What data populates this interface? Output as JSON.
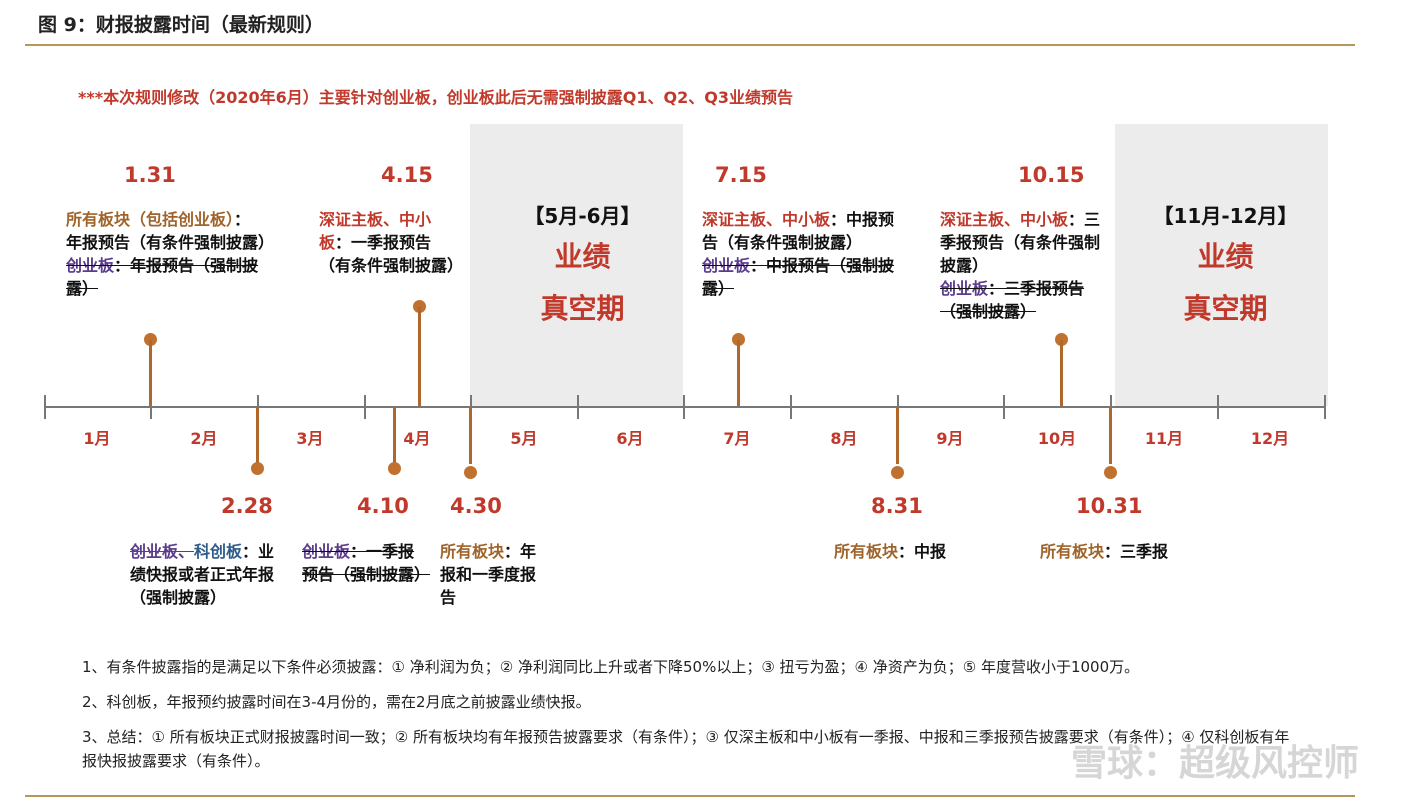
{
  "figure_title": "图 9：财报披露时间（最新规则）",
  "notice": "***本次规则修改（2020年6月）主要针对创业板，创业板此后无需强制披露Q1、Q2、Q3业绩预告",
  "months": [
    "1月",
    "2月",
    "3月",
    "4月",
    "5月",
    "6月",
    "7月",
    "8月",
    "9月",
    "10月",
    "11月",
    "12月"
  ],
  "vacuum_periods": [
    {
      "range": "【5月-6月】",
      "line1": "业绩",
      "line2": "真空期"
    },
    {
      "range": "【11月-12月】",
      "line1": "业绩",
      "line2": "真空期"
    }
  ],
  "events_above": [
    {
      "date": "1.31",
      "p1a": "所有板块（包括创业板）",
      "p1b": "：年报预告（有条件强制披露）",
      "p2a": "创业板",
      "p2b": "：年报预告（强制披露）"
    },
    {
      "date": "4.15",
      "p1a": "深证主板、中小板",
      "p1b": "：一季报预告（有条件强制披露）"
    },
    {
      "date": "7.15",
      "p1a": "深证主板、中小板",
      "p1b": "：中报预告（有条件强制披露）",
      "p2a": "创业板",
      "p2b": "：中报预告（强制披露）"
    },
    {
      "date": "10.15",
      "p1a": "深证主板、中小板",
      "p1b": "：三季报预告（有条件强制披露）",
      "p2a": "创业板",
      "p2b": "：三季报预告（强制披露）"
    }
  ],
  "events_below": [
    {
      "date": "2.28",
      "p1a": "创业板、",
      "p1b": "科创板",
      "p1c": "：业绩快报或者正式年报（强制披露）"
    },
    {
      "date": "4.10",
      "p1a": "创业板",
      "p1b": "：一季报预告（强制披露）"
    },
    {
      "date": "4.30",
      "p1a": "所有板块",
      "p1b": "：年报和一季度报告"
    },
    {
      "date": "8.31",
      "p1a": "所有板块",
      "p1b": "：中报"
    },
    {
      "date": "10.31",
      "p1a": "所有板块",
      "p1b": "：三季报"
    }
  ],
  "notes": [
    "1、有条件披露指的是满足以下条件必须披露：① 净利润为负；② 净利润同比上升或者下降50%以上；③ 扭亏为盈；④ 净资产为负；⑤ 年度营收小于1000万。",
    "2、科创板，年报预约披露时间在3-4月份的，需在2月底之前披露业绩快报。",
    "3、总结：① 所有板块正式财报披露时间一致；② 所有板块均有年报预告披露要求（有条件）；③ 仅深主板和中小板有一季报、中报和三季报预告披露要求（有条件）；④ 仅科创板有年报快报披露要求（有条件）。"
  ],
  "watermark": "雪球：超级风控师",
  "colors": {
    "accent_red": "#c0392b",
    "brown": "#a0642a",
    "purple": "#5b3b8c",
    "stem": "#b0672c",
    "rule": "#b8965a"
  }
}
